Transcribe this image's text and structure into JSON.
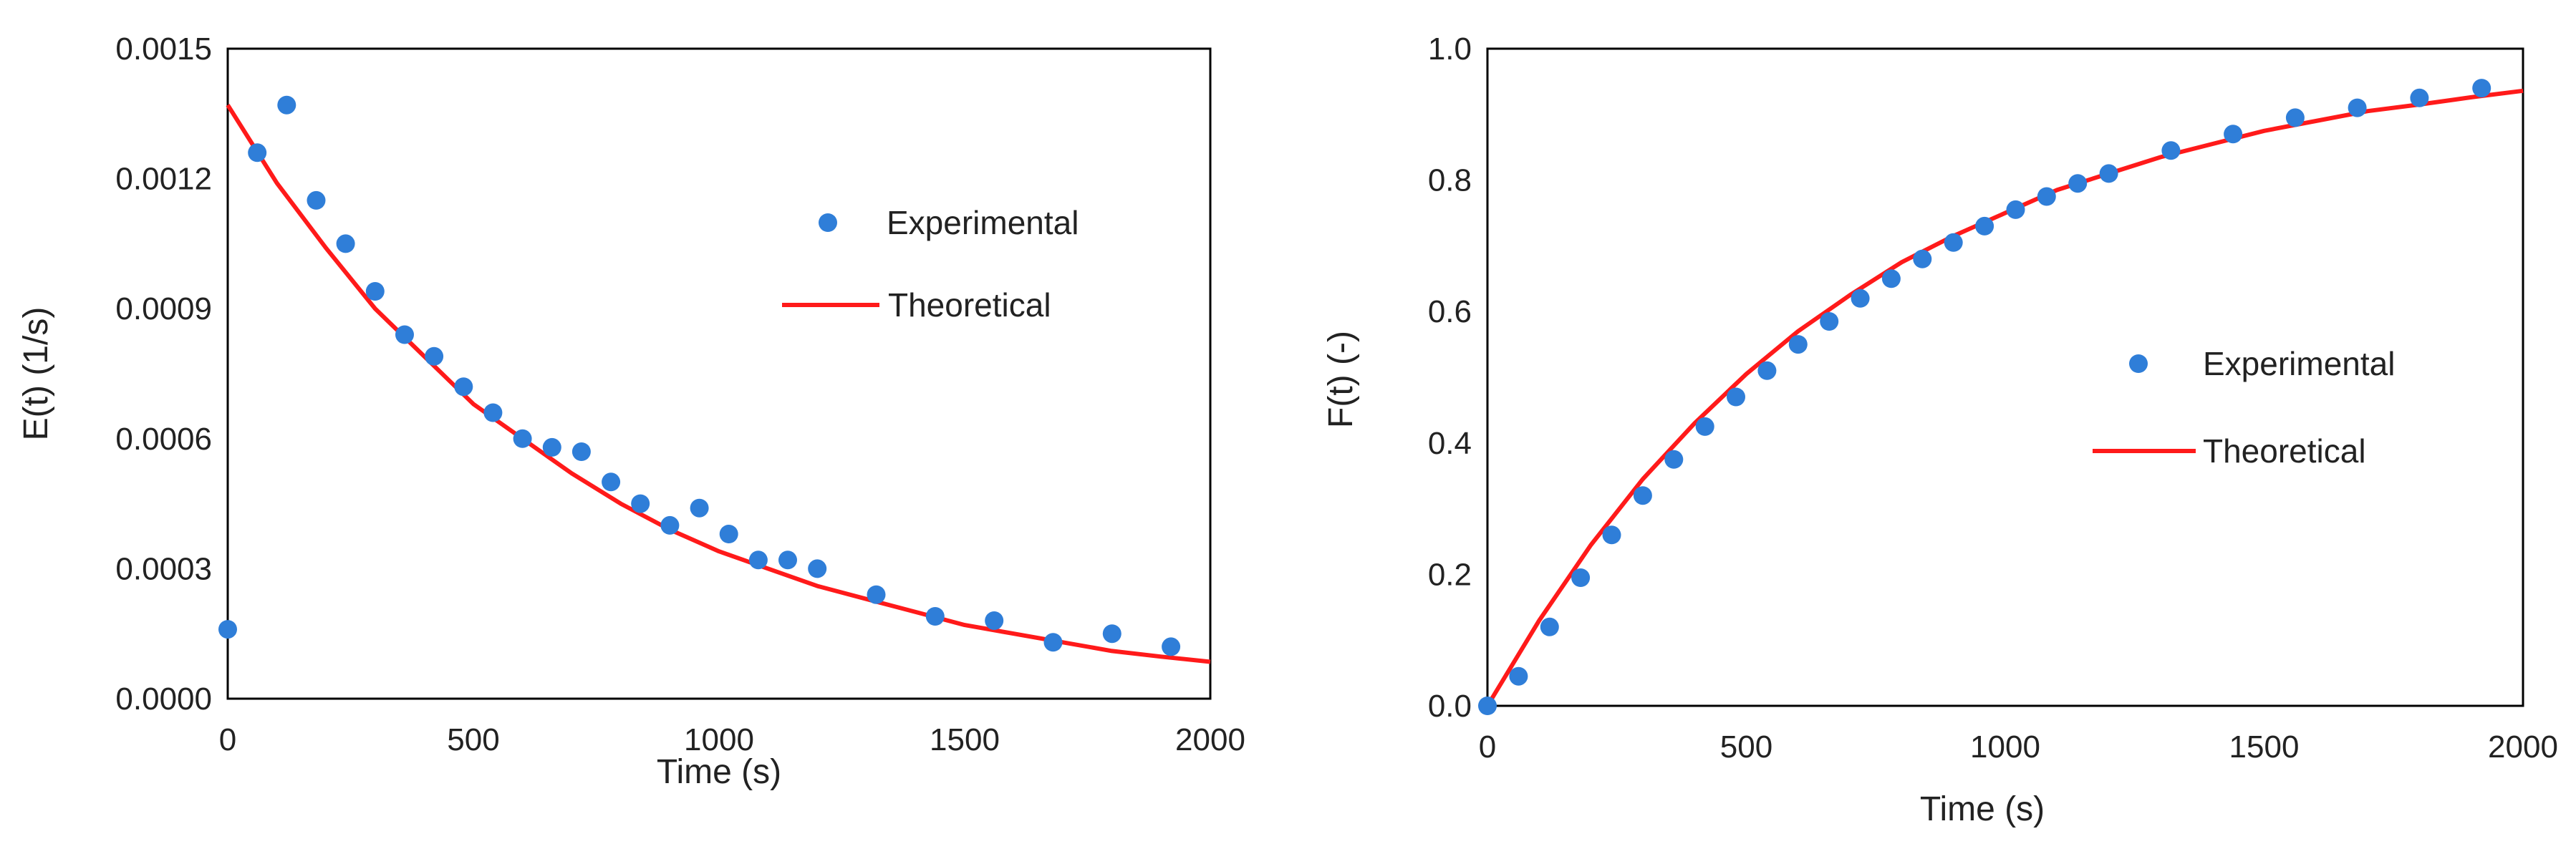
{
  "colors": {
    "experimental": "#2f7ed8",
    "theoretical": "#ff1a1a",
    "axis": "#000000",
    "text": "#222222"
  },
  "chart_data": [
    {
      "type": "scatter",
      "xlabel": "Time (s)",
      "ylabel": "E(t) (1/s)",
      "xlim": [
        0,
        2000
      ],
      "ylim": [
        0,
        0.0015
      ],
      "xticks": [
        "0",
        "500",
        "1000",
        "1500",
        "2000"
      ],
      "yticks": [
        "0.0000",
        "0.0003",
        "0.0006",
        "0.0009",
        "0.0012",
        "0.0015"
      ],
      "legend_position": "right-upper",
      "series": [
        {
          "name": "Experimental",
          "kind": "points",
          "x": [
            0,
            60,
            120,
            180,
            240,
            300,
            360,
            420,
            480,
            540,
            600,
            660,
            720,
            780,
            840,
            900,
            960,
            1020,
            1080,
            1140,
            1200,
            1320,
            1440,
            1560,
            1680,
            1800,
            1920
          ],
          "y": [
            0.00016,
            0.00126,
            0.00137,
            0.00115,
            0.00105,
            0.00094,
            0.00084,
            0.00079,
            0.00072,
            0.00066,
            0.0006,
            0.00058,
            0.00057,
            0.0005,
            0.00045,
            0.0004,
            0.00044,
            0.00038,
            0.00032,
            0.00032,
            0.0003,
            0.00024,
            0.00019,
            0.00018,
            0.00013,
            0.00015,
            0.00012
          ]
        },
        {
          "name": "Theoretical",
          "kind": "line",
          "x": [
            0,
            100,
            200,
            300,
            400,
            500,
            600,
            700,
            800,
            900,
            1000,
            1100,
            1200,
            1300,
            1400,
            1500,
            1600,
            1700,
            1800,
            1900,
            2000
          ],
          "y": [
            0.00137,
            0.00119,
            0.00104,
            0.0009,
            0.00079,
            0.00068,
            0.0006,
            0.00052,
            0.00045,
            0.00039,
            0.00034,
            0.0003,
            0.00026,
            0.00023,
            0.0002,
            0.00017,
            0.00015,
            0.00013,
            0.00011,
            9.7e-05,
            8.5e-05
          ]
        }
      ]
    },
    {
      "type": "scatter",
      "xlabel": "Time (s)",
      "ylabel": "F(t) (-)",
      "xlim": [
        0,
        2000
      ],
      "ylim": [
        0,
        1.0
      ],
      "xticks": [
        "0",
        "500",
        "1000",
        "1500",
        "2000"
      ],
      "yticks": [
        "0.0",
        "0.2",
        "0.4",
        "0.6",
        "0.8",
        "1.0"
      ],
      "legend_position": "right-middle",
      "series": [
        {
          "name": "Experimental",
          "kind": "points",
          "x": [
            0,
            60,
            120,
            180,
            240,
            300,
            360,
            420,
            480,
            540,
            600,
            660,
            720,
            780,
            840,
            900,
            960,
            1020,
            1080,
            1140,
            1200,
            1320,
            1440,
            1560,
            1680,
            1800,
            1920
          ],
          "y": [
            0.0,
            0.045,
            0.12,
            0.195,
            0.26,
            0.32,
            0.375,
            0.425,
            0.47,
            0.51,
            0.55,
            0.585,
            0.62,
            0.65,
            0.68,
            0.705,
            0.73,
            0.755,
            0.775,
            0.795,
            0.81,
            0.845,
            0.87,
            0.895,
            0.91,
            0.925,
            0.94
          ]
        },
        {
          "name": "Theoretical",
          "kind": "line",
          "x": [
            0,
            100,
            200,
            300,
            400,
            500,
            600,
            700,
            800,
            900,
            1000,
            1100,
            1200,
            1300,
            1400,
            1500,
            1600,
            1700,
            1800,
            1900,
            2000
          ],
          "y": [
            0.0,
            0.13,
            0.245,
            0.345,
            0.43,
            0.505,
            0.57,
            0.625,
            0.675,
            0.715,
            0.75,
            0.785,
            0.81,
            0.835,
            0.855,
            0.875,
            0.89,
            0.905,
            0.915,
            0.926,
            0.936
          ]
        }
      ]
    }
  ]
}
